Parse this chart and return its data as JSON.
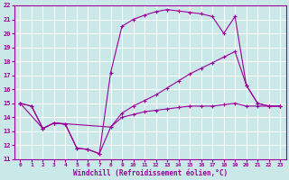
{
  "background_color": "#cbe8e8",
  "grid_color": "#ffffff",
  "line_color": "#990099",
  "marker": "+",
  "xlabel": "Windchill (Refroidissement éolien,°C)",
  "xlim": [
    -0.5,
    23.5
  ],
  "ylim": [
    11,
    22
  ],
  "xticks": [
    0,
    1,
    2,
    3,
    4,
    5,
    6,
    7,
    8,
    9,
    10,
    11,
    12,
    13,
    14,
    15,
    16,
    17,
    18,
    19,
    20,
    21,
    22,
    23
  ],
  "yticks": [
    11,
    12,
    13,
    14,
    15,
    16,
    17,
    18,
    19,
    20,
    21,
    22
  ],
  "series": [
    {
      "x": [
        0,
        1,
        2,
        3,
        4,
        5,
        6,
        7,
        8,
        9,
        10,
        11,
        12,
        13,
        14,
        15,
        16,
        17,
        18,
        19,
        20,
        21,
        22,
        23
      ],
      "y": [
        15,
        14.8,
        13.2,
        13.6,
        13.5,
        11.8,
        11.7,
        11.4,
        17.2,
        20.5,
        21.0,
        21.3,
        21.55,
        21.7,
        21.6,
        21.5,
        21.4,
        21.2,
        20.0,
        21.2,
        16.3,
        15.0,
        14.8,
        14.8
      ]
    },
    {
      "x": [
        0,
        2,
        3,
        8,
        9,
        10,
        11,
        12,
        13,
        14,
        15,
        16,
        17,
        18,
        19,
        20,
        21,
        22,
        23
      ],
      "y": [
        15,
        13.2,
        13.6,
        13.3,
        14.3,
        14.8,
        15.2,
        15.6,
        16.1,
        16.6,
        17.1,
        17.5,
        17.9,
        18.3,
        18.7,
        16.3,
        15.0,
        14.8,
        14.8
      ]
    },
    {
      "x": [
        0,
        1,
        2,
        3,
        4,
        5,
        6,
        7,
        8,
        9,
        10,
        11,
        12,
        13,
        14,
        15,
        16,
        17,
        18,
        19,
        20,
        21,
        22,
        23
      ],
      "y": [
        15,
        14.8,
        13.2,
        13.6,
        13.5,
        11.8,
        11.7,
        11.4,
        13.3,
        14.0,
        14.2,
        14.4,
        14.5,
        14.6,
        14.7,
        14.8,
        14.8,
        14.8,
        14.9,
        15.0,
        14.8,
        14.8,
        14.8,
        14.8
      ]
    }
  ]
}
